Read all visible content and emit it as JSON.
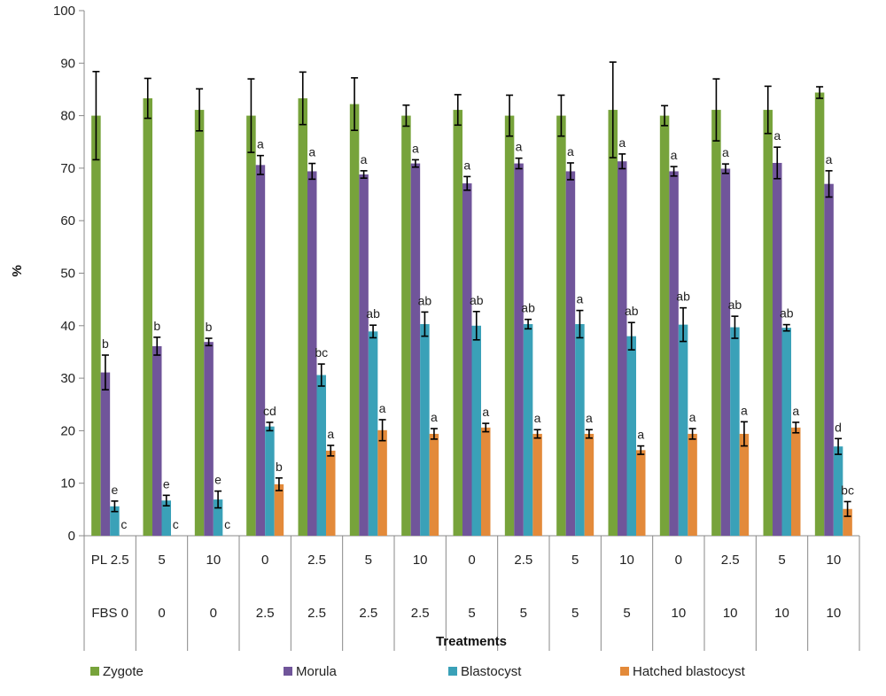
{
  "chart_data": {
    "type": "bar",
    "ylabel": "%",
    "xlabel": "Treatments",
    "ylim": [
      0,
      100
    ],
    "yticks": [
      0,
      10,
      20,
      30,
      40,
      50,
      60,
      70,
      80,
      90,
      100
    ],
    "grid": false,
    "legend_position": "bottom",
    "category_rows": [
      {
        "label": "PL",
        "values": [
          "2.5",
          "5",
          "10",
          "0",
          "2.5",
          "5",
          "10",
          "0",
          "2.5",
          "5",
          "10",
          "0",
          "2.5",
          "5",
          "10"
        ]
      },
      {
        "label": "FBS",
        "values": [
          "0",
          "0",
          "0",
          "2.5",
          "2.5",
          "2.5",
          "2.5",
          "5",
          "5",
          "5",
          "5",
          "10",
          "10",
          "10",
          "10"
        ]
      }
    ],
    "series": [
      {
        "name": "Zygote",
        "color": "#77a33b",
        "values": [
          80,
          83.3,
          81.1,
          80,
          83.3,
          82.2,
          80,
          81.1,
          80,
          80,
          81.1,
          80,
          81.1,
          81.1,
          84.4
        ],
        "errors": [
          8.4,
          3.8,
          4.0,
          7.0,
          5.0,
          5.0,
          2.0,
          2.9,
          3.9,
          3.9,
          9.1,
          1.9,
          5.9,
          4.5,
          1.1
        ],
        "letters": [
          "",
          "",
          "",
          "",
          "",
          "",
          "",
          "",
          "",
          "",
          "",
          "",
          "",
          "",
          ""
        ]
      },
      {
        "name": "Morula",
        "color": "#70559a",
        "values": [
          31.1,
          36.1,
          36.9,
          70.6,
          69.4,
          68.8,
          70.9,
          67.1,
          70.9,
          69.4,
          71.3,
          69.4,
          69.9,
          71,
          67
        ],
        "errors": [
          3.3,
          1.7,
          0.7,
          1.8,
          1.5,
          0.7,
          0.7,
          1.3,
          1.0,
          1.6,
          1.4,
          0.9,
          0.9,
          3.0,
          2.5
        ],
        "letters": [
          "b",
          "b",
          "b",
          "a",
          "a",
          "a",
          "a",
          "a",
          "a",
          "a",
          "a",
          "a",
          "a",
          "a",
          "a"
        ]
      },
      {
        "name": "Blastocyst",
        "color": "#3aa1b8",
        "values": [
          5.6,
          6.7,
          6.9,
          20.8,
          30.6,
          38.9,
          40.3,
          40,
          40.3,
          40.3,
          38,
          40.2,
          39.7,
          39.6,
          17
        ],
        "errors": [
          1.0,
          1.0,
          1.6,
          0.8,
          2.1,
          1.2,
          2.3,
          2.7,
          0.9,
          2.6,
          2.6,
          3.2,
          2.1,
          0.6,
          1.5
        ],
        "letters": [
          "e",
          "e",
          "e",
          "cd",
          "bc",
          "ab",
          "ab",
          "ab",
          "ab",
          "a",
          "ab",
          "ab",
          "ab",
          "ab",
          "d"
        ]
      },
      {
        "name": "Hatched blastocyst",
        "color": "#e38a3a",
        "values": [
          0,
          0,
          0,
          9.8,
          16.2,
          20.1,
          19.4,
          20.6,
          19.4,
          19.4,
          16.3,
          19.4,
          19.4,
          20.6,
          5.1
        ],
        "errors": [
          0,
          0,
          0,
          1.2,
          1.0,
          2.0,
          1.0,
          0.8,
          0.8,
          0.8,
          0.8,
          1.0,
          2.3,
          1.0,
          1.4
        ],
        "letters": [
          "c",
          "c",
          "c",
          "b",
          "a",
          "a",
          "a",
          "a",
          "a",
          "a",
          "a",
          "a",
          "a",
          "a",
          "bc"
        ]
      }
    ]
  }
}
